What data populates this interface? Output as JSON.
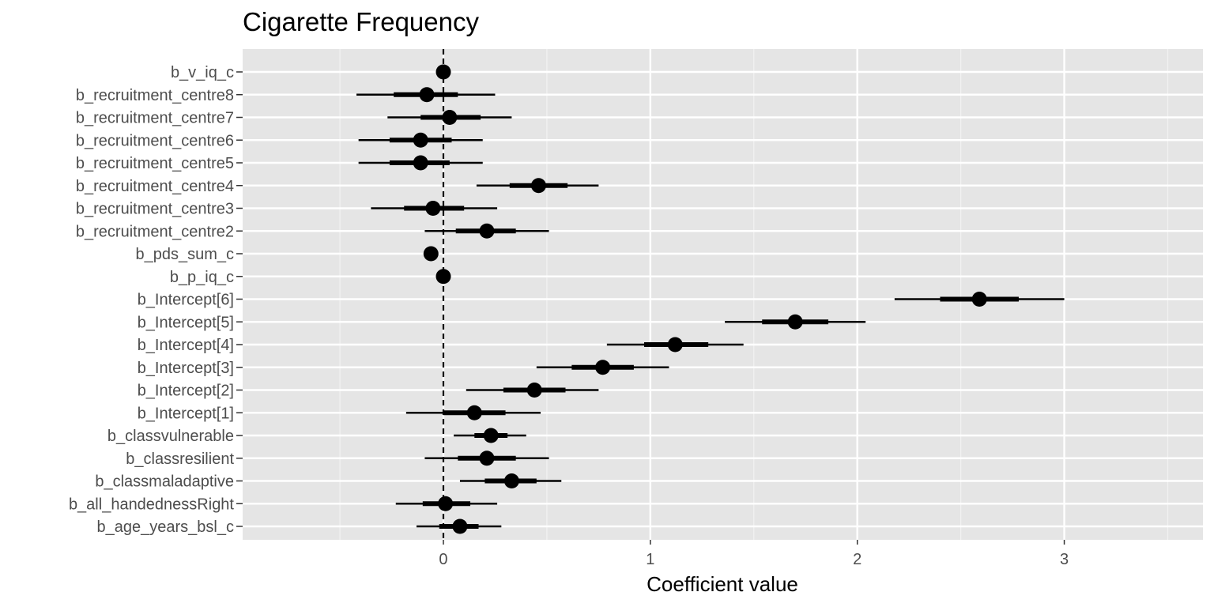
{
  "chart_data": {
    "type": "coefficient-interval",
    "title": "Cigarette Frequency",
    "xlabel": "Coefficient value",
    "ylabel": "",
    "xlim": [
      -0.97,
      3.67
    ],
    "x_ticks": [
      0,
      1,
      2,
      3
    ],
    "x_tick_labels": [
      "0",
      "1",
      "2",
      "3"
    ],
    "reference_line": 0,
    "grid": true,
    "terms": [
      {
        "label": "b_v_iq_c",
        "estimate": 0.0,
        "inner": [
          -0.01,
          0.01
        ],
        "outer": [
          -0.01,
          0.01
        ]
      },
      {
        "label": "b_recruitment_centre8",
        "estimate": -0.08,
        "inner": [
          -0.24,
          0.07
        ],
        "outer": [
          -0.42,
          0.25
        ]
      },
      {
        "label": "b_recruitment_centre7",
        "estimate": 0.03,
        "inner": [
          -0.11,
          0.18
        ],
        "outer": [
          -0.27,
          0.33
        ]
      },
      {
        "label": "b_recruitment_centre6",
        "estimate": -0.11,
        "inner": [
          -0.26,
          0.04
        ],
        "outer": [
          -0.41,
          0.19
        ]
      },
      {
        "label": "b_recruitment_centre5",
        "estimate": -0.11,
        "inner": [
          -0.26,
          0.03
        ],
        "outer": [
          -0.41,
          0.19
        ]
      },
      {
        "label": "b_recruitment_centre4",
        "estimate": 0.46,
        "inner": [
          0.32,
          0.6
        ],
        "outer": [
          0.16,
          0.75
        ]
      },
      {
        "label": "b_recruitment_centre3",
        "estimate": -0.05,
        "inner": [
          -0.19,
          0.1
        ],
        "outer": [
          -0.35,
          0.26
        ]
      },
      {
        "label": "b_recruitment_centre2",
        "estimate": 0.21,
        "inner": [
          0.06,
          0.35
        ],
        "outer": [
          -0.09,
          0.51
        ]
      },
      {
        "label": "b_pds_sum_c",
        "estimate": -0.06,
        "inner": [
          -0.08,
          -0.04
        ],
        "outer": [
          -0.09,
          -0.03
        ]
      },
      {
        "label": "b_p_iq_c",
        "estimate": 0.0,
        "inner": [
          -0.01,
          0.01
        ],
        "outer": [
          -0.01,
          0.01
        ]
      },
      {
        "label": "b_Intercept[6]",
        "estimate": 2.59,
        "inner": [
          2.4,
          2.78
        ],
        "outer": [
          2.18,
          3.0
        ]
      },
      {
        "label": "b_Intercept[5]",
        "estimate": 1.7,
        "inner": [
          1.54,
          1.86
        ],
        "outer": [
          1.36,
          2.04
        ]
      },
      {
        "label": "b_Intercept[4]",
        "estimate": 1.12,
        "inner": [
          0.97,
          1.28
        ],
        "outer": [
          0.79,
          1.45
        ]
      },
      {
        "label": "b_Intercept[3]",
        "estimate": 0.77,
        "inner": [
          0.62,
          0.92
        ],
        "outer": [
          0.45,
          1.09
        ]
      },
      {
        "label": "b_Intercept[2]",
        "estimate": 0.44,
        "inner": [
          0.29,
          0.59
        ],
        "outer": [
          0.11,
          0.75
        ]
      },
      {
        "label": "b_Intercept[1]",
        "estimate": 0.15,
        "inner": [
          0.0,
          0.3
        ],
        "outer": [
          -0.18,
          0.47
        ]
      },
      {
        "label": "b_classvulnerable",
        "estimate": 0.23,
        "inner": [
          0.15,
          0.31
        ],
        "outer": [
          0.05,
          0.4
        ]
      },
      {
        "label": "b_classresilient",
        "estimate": 0.21,
        "inner": [
          0.07,
          0.35
        ],
        "outer": [
          -0.09,
          0.51
        ]
      },
      {
        "label": "b_classmaladaptive",
        "estimate": 0.33,
        "inner": [
          0.2,
          0.45
        ],
        "outer": [
          0.08,
          0.57
        ]
      },
      {
        "label": "b_all_handednessRight",
        "estimate": 0.01,
        "inner": [
          -0.1,
          0.13
        ],
        "outer": [
          -0.23,
          0.26
        ]
      },
      {
        "label": "b_age_years_bsl_c",
        "estimate": 0.08,
        "inner": [
          -0.02,
          0.17
        ],
        "outer": [
          -0.13,
          0.28
        ]
      }
    ],
    "colors": {
      "panel": "#e5e5e5",
      "grid_major": "#ffffff",
      "grid_minor": "#f2f2f2",
      "mark": "#000000",
      "axis_text": "#4d4d4d"
    }
  }
}
